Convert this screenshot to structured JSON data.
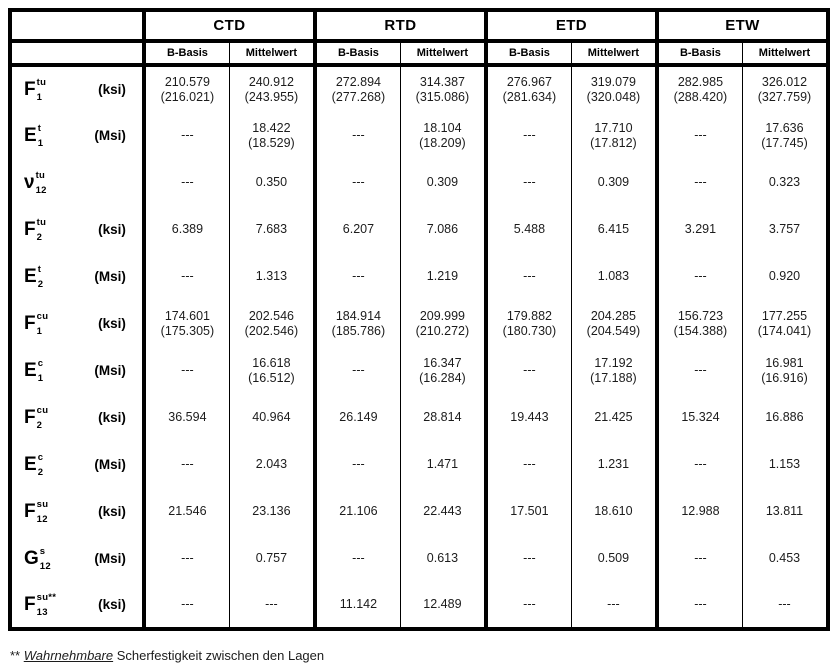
{
  "table": {
    "conditions": [
      "CTD",
      "RTD",
      "ETD",
      "ETW"
    ],
    "subheaders": [
      "B-Basis",
      "Mittelwert"
    ],
    "rows": [
      {
        "symbol": "F",
        "sub": "1",
        "sup": "tu",
        "unit": "(ksi)",
        "cells": [
          {
            "v": "210.579",
            "p": "(216.021)"
          },
          {
            "v": "240.912",
            "p": "(243.955)"
          },
          {
            "v": "272.894",
            "p": "(277.268)"
          },
          {
            "v": "314.387",
            "p": "(315.086)"
          },
          {
            "v": "276.967",
            "p": "(281.634)"
          },
          {
            "v": "319.079",
            "p": "(320.048)"
          },
          {
            "v": "282.985",
            "p": "(288.420)"
          },
          {
            "v": "326.012",
            "p": "(327.759)"
          }
        ]
      },
      {
        "symbol": "E",
        "sub": "1",
        "sup": "t",
        "unit": "(Msi)",
        "cells": [
          {
            "v": "---"
          },
          {
            "v": "18.422",
            "p": "(18.529)"
          },
          {
            "v": "---"
          },
          {
            "v": "18.104",
            "p": "(18.209)"
          },
          {
            "v": "---"
          },
          {
            "v": "17.710",
            "p": "(17.812)"
          },
          {
            "v": "---"
          },
          {
            "v": "17.636",
            "p": "(17.745)"
          }
        ]
      },
      {
        "symbol": "ν",
        "sub": "12",
        "sup": "tu",
        "unit": "",
        "cells": [
          {
            "v": "---"
          },
          {
            "v": "0.350"
          },
          {
            "v": "---"
          },
          {
            "v": "0.309"
          },
          {
            "v": "---"
          },
          {
            "v": "0.309"
          },
          {
            "v": "---"
          },
          {
            "v": "0.323"
          }
        ]
      },
      {
        "symbol": "F",
        "sub": "2",
        "sup": "tu",
        "unit": "(ksi)",
        "cells": [
          {
            "v": "6.389"
          },
          {
            "v": "7.683"
          },
          {
            "v": "6.207"
          },
          {
            "v": "7.086"
          },
          {
            "v": "5.488"
          },
          {
            "v": "6.415"
          },
          {
            "v": "3.291"
          },
          {
            "v": "3.757"
          }
        ]
      },
      {
        "symbol": "E",
        "sub": "2",
        "sup": "t",
        "unit": "(Msi)",
        "cells": [
          {
            "v": "---"
          },
          {
            "v": "1.313"
          },
          {
            "v": "---"
          },
          {
            "v": "1.219"
          },
          {
            "v": "---"
          },
          {
            "v": "1.083"
          },
          {
            "v": "---"
          },
          {
            "v": "0.920"
          }
        ]
      },
      {
        "symbol": "F",
        "sub": "1",
        "sup": "cu",
        "unit": "(ksi)",
        "cells": [
          {
            "v": "174.601",
            "p": "(175.305)"
          },
          {
            "v": "202.546",
            "p": "(202.546)"
          },
          {
            "v": "184.914",
            "p": "(185.786)"
          },
          {
            "v": "209.999",
            "p": "(210.272)"
          },
          {
            "v": "179.882",
            "p": "(180.730)"
          },
          {
            "v": "204.285",
            "p": "(204.549)"
          },
          {
            "v": "156.723",
            "p": "(154.388)"
          },
          {
            "v": "177.255",
            "p": "(174.041)"
          }
        ]
      },
      {
        "symbol": "E",
        "sub": "1",
        "sup": "c",
        "unit": "(Msi)",
        "cells": [
          {
            "v": "---"
          },
          {
            "v": "16.618",
            "p": "(16.512)"
          },
          {
            "v": "---"
          },
          {
            "v": "16.347",
            "p": "(16.284)"
          },
          {
            "v": "---"
          },
          {
            "v": "17.192",
            "p": "(17.188)"
          },
          {
            "v": "---"
          },
          {
            "v": "16.981",
            "p": "(16.916)"
          }
        ]
      },
      {
        "symbol": "F",
        "sub": "2",
        "sup": "cu",
        "unit": "(ksi)",
        "cells": [
          {
            "v": "36.594"
          },
          {
            "v": "40.964"
          },
          {
            "v": "26.149"
          },
          {
            "v": "28.814"
          },
          {
            "v": "19.443"
          },
          {
            "v": "21.425"
          },
          {
            "v": "15.324"
          },
          {
            "v": "16.886"
          }
        ]
      },
      {
        "symbol": "E",
        "sub": "2",
        "sup": "c",
        "unit": "(Msi)",
        "cells": [
          {
            "v": "---"
          },
          {
            "v": "2.043"
          },
          {
            "v": "---"
          },
          {
            "v": "1.471"
          },
          {
            "v": "---"
          },
          {
            "v": "1.231"
          },
          {
            "v": "---"
          },
          {
            "v": "1.153"
          }
        ]
      },
      {
        "symbol": "F",
        "sub": "12",
        "sup": "su",
        "unit": "(ksi)",
        "cells": [
          {
            "v": "21.546"
          },
          {
            "v": "23.136"
          },
          {
            "v": "21.106"
          },
          {
            "v": "22.443"
          },
          {
            "v": "17.501"
          },
          {
            "v": "18.610"
          },
          {
            "v": "12.988"
          },
          {
            "v": "13.811"
          }
        ]
      },
      {
        "symbol": "G",
        "sub": "12",
        "sup": "s",
        "unit": "(Msi)",
        "cells": [
          {
            "v": "---"
          },
          {
            "v": "0.757"
          },
          {
            "v": "---"
          },
          {
            "v": "0.613"
          },
          {
            "v": "---"
          },
          {
            "v": "0.509"
          },
          {
            "v": "---"
          },
          {
            "v": "0.453"
          }
        ]
      },
      {
        "symbol": "F",
        "sub": "13",
        "sup": "su**",
        "unit": "(ksi)",
        "cells": [
          {
            "v": "---"
          },
          {
            "v": "---"
          },
          {
            "v": "11.142"
          },
          {
            "v": "12.489"
          },
          {
            "v": "---"
          },
          {
            "v": "---"
          },
          {
            "v": "---"
          },
          {
            "v": "---"
          }
        ]
      }
    ],
    "footnote": {
      "marker": "** ",
      "emphasis": "Wahrnehmbare",
      "rest": " Scherfestigkeit zwischen den Lagen"
    },
    "colors": {
      "border": "#000000",
      "text": "#1c1c1c",
      "background": "#ffffff"
    }
  }
}
